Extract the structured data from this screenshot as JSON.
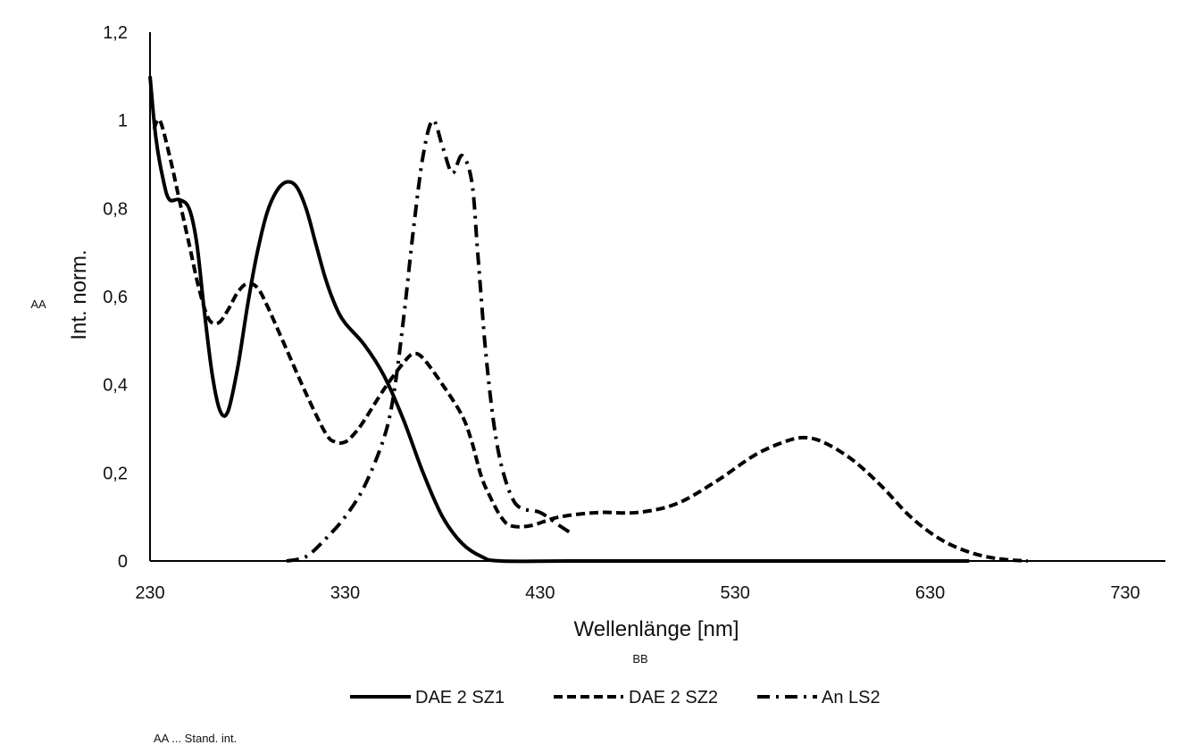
{
  "chart_data": {
    "type": "line",
    "title": "",
    "xlabel": "Wellenlänge [nm]",
    "ylabel": "Int. norm.",
    "xlim": [
      230,
      730
    ],
    "ylim": [
      0,
      1.2
    ],
    "x_ticks": [
      "230",
      "330",
      "430",
      "530",
      "630",
      "730"
    ],
    "y_ticks": [
      "0",
      "0,2",
      "0,4",
      "0,6",
      "0,8",
      "1",
      "1,2"
    ],
    "extra_labels": {
      "y_side": "AA",
      "x_below": "BB",
      "footnote": "AA ... Stand. int."
    },
    "legend_position": "bottom",
    "series": [
      {
        "name": "DAE 2 SZ1",
        "style": "solid",
        "points": [
          [
            230,
            1.1
          ],
          [
            233,
            0.96
          ],
          [
            237,
            0.86
          ],
          [
            240,
            0.82
          ],
          [
            245,
            0.82
          ],
          [
            250,
            0.8
          ],
          [
            254,
            0.72
          ],
          [
            258,
            0.56
          ],
          [
            262,
            0.42
          ],
          [
            266,
            0.34
          ],
          [
            270,
            0.34
          ],
          [
            275,
            0.44
          ],
          [
            280,
            0.58
          ],
          [
            285,
            0.7
          ],
          [
            290,
            0.79
          ],
          [
            295,
            0.84
          ],
          [
            300,
            0.86
          ],
          [
            305,
            0.85
          ],
          [
            310,
            0.8
          ],
          [
            315,
            0.72
          ],
          [
            320,
            0.64
          ],
          [
            325,
            0.58
          ],
          [
            330,
            0.54
          ],
          [
            340,
            0.49
          ],
          [
            350,
            0.42
          ],
          [
            360,
            0.32
          ],
          [
            370,
            0.2
          ],
          [
            380,
            0.1
          ],
          [
            390,
            0.04
          ],
          [
            400,
            0.01
          ],
          [
            410,
            0.0
          ],
          [
            450,
            0.0
          ],
          [
            550,
            0.0
          ],
          [
            600,
            0.0
          ],
          [
            650,
            0.0
          ]
        ]
      },
      {
        "name": "DAE 2 SZ2",
        "style": "dashed",
        "points": [
          [
            232,
            0.98
          ],
          [
            235,
            1.0
          ],
          [
            240,
            0.92
          ],
          [
            245,
            0.82
          ],
          [
            250,
            0.72
          ],
          [
            255,
            0.62
          ],
          [
            260,
            0.55
          ],
          [
            265,
            0.54
          ],
          [
            270,
            0.57
          ],
          [
            275,
            0.61
          ],
          [
            280,
            0.63
          ],
          [
            285,
            0.62
          ],
          [
            290,
            0.58
          ],
          [
            300,
            0.48
          ],
          [
            310,
            0.38
          ],
          [
            320,
            0.29
          ],
          [
            325,
            0.27
          ],
          [
            330,
            0.27
          ],
          [
            335,
            0.29
          ],
          [
            340,
            0.32
          ],
          [
            350,
            0.39
          ],
          [
            360,
            0.45
          ],
          [
            365,
            0.47
          ],
          [
            370,
            0.46
          ],
          [
            380,
            0.4
          ],
          [
            390,
            0.33
          ],
          [
            395,
            0.27
          ],
          [
            400,
            0.19
          ],
          [
            405,
            0.14
          ],
          [
            410,
            0.1
          ],
          [
            415,
            0.08
          ],
          [
            425,
            0.08
          ],
          [
            440,
            0.1
          ],
          [
            460,
            0.11
          ],
          [
            480,
            0.11
          ],
          [
            500,
            0.13
          ],
          [
            520,
            0.18
          ],
          [
            540,
            0.24
          ],
          [
            555,
            0.27
          ],
          [
            565,
            0.28
          ],
          [
            575,
            0.27
          ],
          [
            590,
            0.23
          ],
          [
            605,
            0.17
          ],
          [
            620,
            0.1
          ],
          [
            635,
            0.05
          ],
          [
            650,
            0.02
          ],
          [
            665,
            0.005
          ],
          [
            680,
            0.0
          ]
        ]
      },
      {
        "name": "An LS2",
        "style": "dashdot",
        "points": [
          [
            300,
            0.0
          ],
          [
            310,
            0.01
          ],
          [
            320,
            0.05
          ],
          [
            330,
            0.1
          ],
          [
            340,
            0.17
          ],
          [
            350,
            0.28
          ],
          [
            355,
            0.38
          ],
          [
            360,
            0.55
          ],
          [
            365,
            0.75
          ],
          [
            370,
            0.92
          ],
          [
            375,
            1.0
          ],
          [
            380,
            0.94
          ],
          [
            385,
            0.88
          ],
          [
            390,
            0.92
          ],
          [
            395,
            0.86
          ],
          [
            398,
            0.7
          ],
          [
            402,
            0.48
          ],
          [
            406,
            0.32
          ],
          [
            410,
            0.22
          ],
          [
            415,
            0.15
          ],
          [
            420,
            0.12
          ],
          [
            430,
            0.11
          ],
          [
            440,
            0.08
          ],
          [
            447,
            0.06
          ]
        ]
      }
    ]
  }
}
